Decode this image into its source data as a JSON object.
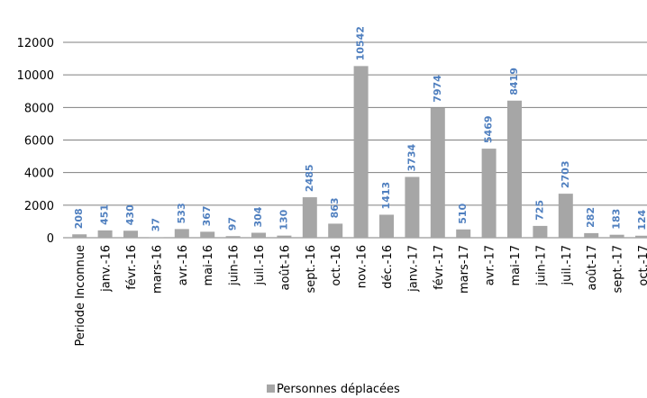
{
  "chart_data": {
    "type": "bar",
    "categories": [
      "Periode Inconnue",
      "janv.-16",
      "févr.-16",
      "mars-16",
      "avr.-16",
      "mai-16",
      "juin-16",
      "juil.-16",
      "août-16",
      "sept.-16",
      "oct.-16",
      "nov.-16",
      "déc.-16",
      "janv.-17",
      "févr.-17",
      "mars-17",
      "avr.-17",
      "mai-17",
      "juin-17",
      "juil.-17",
      "août-17",
      "sept.-17",
      "oct.-17"
    ],
    "series": [
      {
        "name": "Personnes déplacées",
        "color": "#a6a6a6",
        "values": [
          208,
          451,
          430,
          37,
          533,
          367,
          97,
          304,
          130,
          2485,
          863,
          10542,
          1413,
          3734,
          7974,
          510,
          5469,
          8419,
          725,
          2703,
          282,
          183,
          124
        ]
      }
    ],
    "ylim": [
      0,
      12000
    ],
    "yticks": [
      0,
      2000,
      4000,
      6000,
      8000,
      10000,
      12000
    ],
    "grid": true,
    "legend": "bottom"
  }
}
